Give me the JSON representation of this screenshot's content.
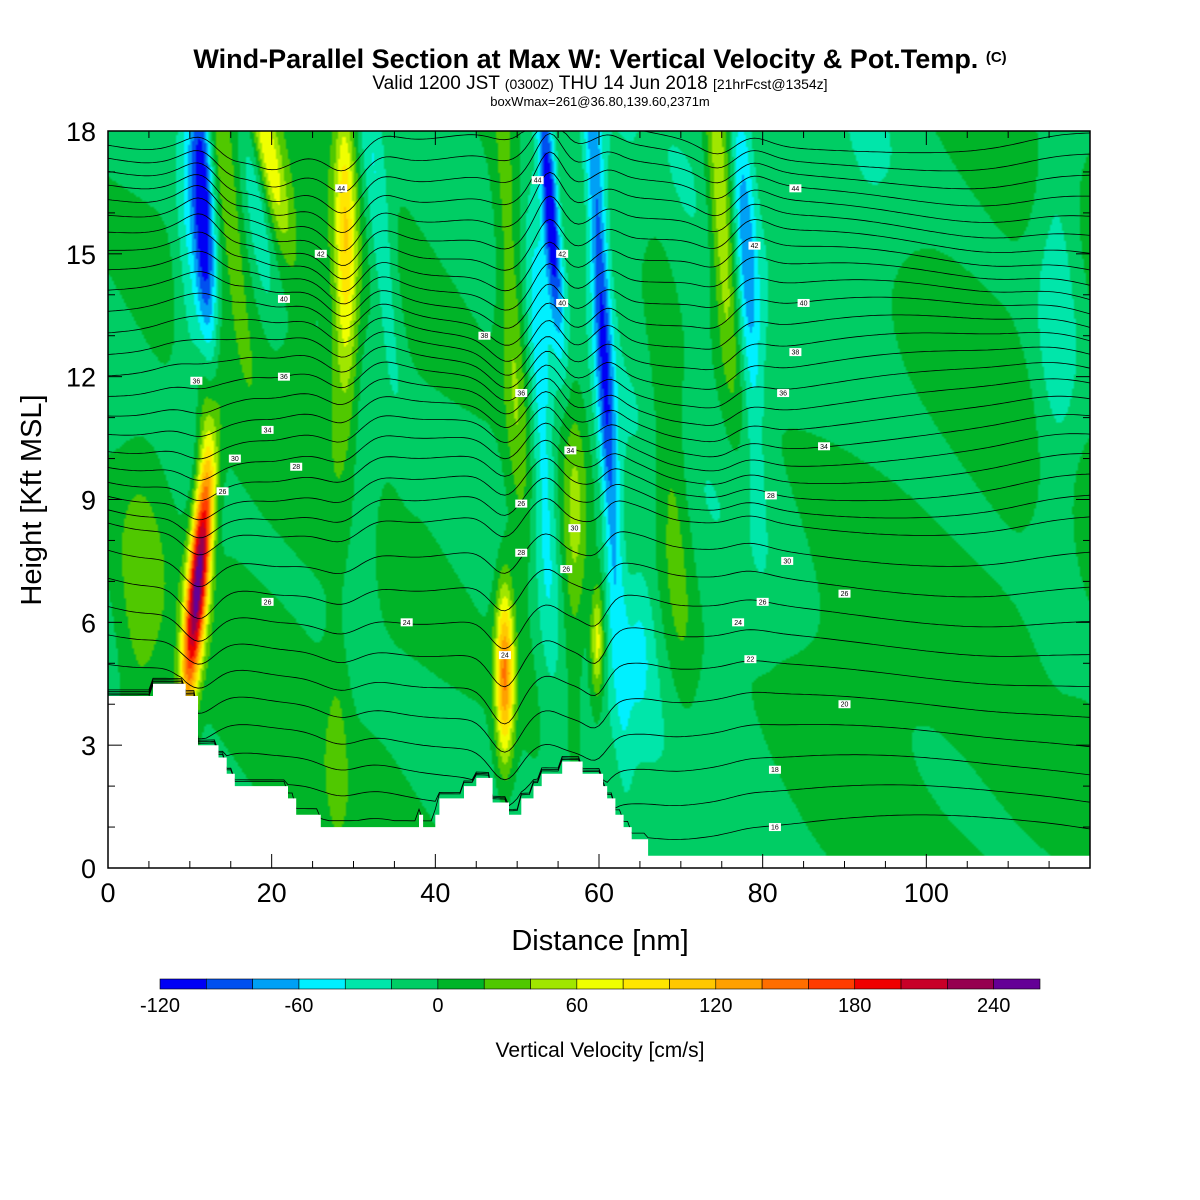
{
  "header": {
    "title": "Wind-Parallel Section at Max W: Vertical Velocity & Pot.Temp.",
    "title_mark": "(C)",
    "subtitle_a": "Valid 1200 JST",
    "subtitle_b": "(0300Z)",
    "subtitle_c": "THU 14 Jun 2018",
    "subtitle_d": "[21hrFcst@1354z]",
    "subtitle2": "boxWmax=261@36.80,139.60,2371m"
  },
  "chart_data": {
    "type": "heatmap",
    "xlabel": "Distance [nm]",
    "ylabel": "Height [Kft MSL]",
    "xlim": [
      0,
      120
    ],
    "ylim": [
      0,
      18
    ],
    "x_ticks": [
      0,
      20,
      40,
      60,
      80,
      100
    ],
    "y_ticks": [
      0,
      3,
      6,
      9,
      12,
      15,
      18
    ],
    "terrain_height_kft": {
      "x": [
        0,
        5.5,
        5.5,
        9.5,
        9.5,
        11,
        11,
        13.5,
        13.5,
        14.5,
        14.5,
        15.5,
        15.5,
        22,
        22,
        23,
        23,
        26,
        26,
        26.5,
        26.5,
        32,
        32,
        38,
        38,
        38.5,
        38.5,
        40,
        40,
        40.5,
        40.5,
        43,
        43,
        43.5,
        43.5,
        45,
        45,
        47,
        47,
        49,
        49,
        50.5,
        50.5,
        52,
        52,
        53,
        53,
        55.5,
        55.5,
        57,
        57,
        58,
        58,
        60.5,
        60.5,
        61,
        61,
        62,
        62,
        63,
        63,
        64,
        64,
        65,
        65,
        66,
        66,
        71,
        71,
        120
      ],
      "h": [
        4.2,
        4.2,
        4.5,
        4.5,
        4.2,
        4.2,
        3.0,
        3.0,
        2.7,
        2.7,
        2.3,
        2.3,
        2.0,
        2.0,
        1.7,
        1.7,
        1.3,
        1.3,
        1.0,
        1.0,
        1.0,
        1.0,
        1.0,
        1.0,
        1.3,
        1.3,
        1.0,
        1.0,
        1.3,
        1.3,
        1.7,
        1.7,
        1.7,
        1.7,
        2.0,
        2.0,
        2.2,
        2.2,
        1.6,
        1.6,
        1.3,
        1.3,
        1.7,
        1.7,
        2.0,
        2.0,
        2.3,
        2.3,
        2.6,
        2.6,
        2.6,
        2.6,
        2.3,
        2.3,
        2.0,
        2.0,
        1.7,
        1.7,
        1.3,
        1.3,
        1.0,
        1.0,
        0.7,
        0.7,
        0.7,
        0.7,
        0.3,
        0.3,
        0.3,
        0.3
      ]
    },
    "vertical_velocity_features": [
      {
        "x": 11,
        "y": 7.0,
        "sx": 0.9,
        "sy": 2.2,
        "w": 250,
        "tilt": 0.45
      },
      {
        "x": 12,
        "y": 11.5,
        "sx": 0.8,
        "sy": 1.4,
        "w": 40,
        "tilt": 0.0
      },
      {
        "x": 11.8,
        "y": 15.5,
        "sx": 0.9,
        "sy": 3.0,
        "w": -110,
        "tilt": -0.18
      },
      {
        "x": 10,
        "y": 16,
        "sx": 1.2,
        "sy": 3.5,
        "w": -40,
        "tilt": 0.0
      },
      {
        "x": 14.5,
        "y": 16.5,
        "sx": 1.0,
        "sy": 2.5,
        "w": 40,
        "tilt": -0.6
      },
      {
        "x": 19.5,
        "y": 17.5,
        "sx": 1.1,
        "sy": 1.8,
        "w": 70,
        "tilt": -1.0
      },
      {
        "x": 18,
        "y": 16.5,
        "sx": 1.0,
        "sy": 2.0,
        "w": -40,
        "tilt": -0.6
      },
      {
        "x": 29,
        "y": 16,
        "sx": 0.9,
        "sy": 2.2,
        "w": 80,
        "tilt": -0.05
      },
      {
        "x": 29,
        "y": 12.5,
        "sx": 1.3,
        "sy": 2.0,
        "w": 40,
        "tilt": 0.0
      },
      {
        "x": 33,
        "y": 16,
        "sx": 1.1,
        "sy": 3.0,
        "w": -45,
        "tilt": -0.5
      },
      {
        "x": 31,
        "y": 9.0,
        "sx": 1.5,
        "sy": 2.5,
        "w": -25,
        "tilt": 0.0
      },
      {
        "x": 48.5,
        "y": 4.8,
        "sx": 0.8,
        "sy": 1.5,
        "w": 145,
        "tilt": 0.0
      },
      {
        "x": 49.5,
        "y": 13.0,
        "sx": 1.1,
        "sy": 4.5,
        "w": 45,
        "tilt": -0.25
      },
      {
        "x": 54,
        "y": 16.2,
        "sx": 0.7,
        "sy": 2.2,
        "w": -115,
        "tilt": -0.35
      },
      {
        "x": 53,
        "y": 11,
        "sx": 1.0,
        "sy": 4.0,
        "w": -45,
        "tilt": -0.2
      },
      {
        "x": 57,
        "y": 8.2,
        "sx": 1.2,
        "sy": 2.5,
        "w": 55,
        "tilt": 0.0
      },
      {
        "x": 59.8,
        "y": 5.5,
        "sx": 0.6,
        "sy": 1.0,
        "w": 85,
        "tilt": 0.0
      },
      {
        "x": 60.5,
        "y": 13,
        "sx": 0.8,
        "sy": 5.5,
        "w": -90,
        "tilt": -0.25
      },
      {
        "x": 75,
        "y": 16,
        "sx": 1.1,
        "sy": 3.0,
        "w": 75,
        "tilt": -0.3
      },
      {
        "x": 69,
        "y": 9,
        "sx": 1.5,
        "sy": 4.0,
        "w": 40,
        "tilt": -0.3
      },
      {
        "x": 78,
        "y": 15,
        "sx": 1.0,
        "sy": 3.5,
        "w": -60,
        "tilt": -0.25
      },
      {
        "x": 65,
        "y": 5.5,
        "sx": 1.3,
        "sy": 1.4,
        "w": -30,
        "tilt": 0.0
      },
      {
        "x": 116,
        "y": 14,
        "sx": 2.0,
        "sy": 5.0,
        "w": -35,
        "tilt": 0.0
      },
      {
        "x": 93,
        "y": 16.5,
        "sx": 3.5,
        "sy": 2.5,
        "w": -18,
        "tilt": 0.0
      },
      {
        "x": 4,
        "y": 6.5,
        "sx": 2.0,
        "sy": 2.3,
        "w": 35,
        "tilt": 0.0
      },
      {
        "x": 28,
        "y": 3.0,
        "sx": 1.0,
        "sy": 2.0,
        "w": 20,
        "tilt": 0.0
      },
      {
        "x": 90,
        "y": 4.5,
        "sx": 6.0,
        "sy": 3.0,
        "w": 18,
        "tilt": 0.0
      }
    ],
    "potential_temperature_labels": [
      {
        "x": 28.5,
        "y": 16.6,
        "text": "44"
      },
      {
        "x": 52.5,
        "y": 16.8,
        "text": "44"
      },
      {
        "x": 84,
        "y": 16.6,
        "text": "44"
      },
      {
        "x": 26,
        "y": 15.0,
        "text": "42"
      },
      {
        "x": 55.5,
        "y": 15.0,
        "text": "42"
      },
      {
        "x": 79,
        "y": 15.2,
        "text": "42"
      },
      {
        "x": 21.5,
        "y": 13.9,
        "text": "40"
      },
      {
        "x": 55.5,
        "y": 13.8,
        "text": "40"
      },
      {
        "x": 85,
        "y": 13.8,
        "text": "40"
      },
      {
        "x": 46,
        "y": 13.0,
        "text": "38"
      },
      {
        "x": 84,
        "y": 12.6,
        "text": "38"
      },
      {
        "x": 10.8,
        "y": 11.9,
        "text": "36"
      },
      {
        "x": 21.5,
        "y": 12.0,
        "text": "36"
      },
      {
        "x": 50.5,
        "y": 11.6,
        "text": "36"
      },
      {
        "x": 82.5,
        "y": 11.6,
        "text": "36"
      },
      {
        "x": 19.5,
        "y": 10.7,
        "text": "34"
      },
      {
        "x": 56.5,
        "y": 10.2,
        "text": "34"
      },
      {
        "x": 87.5,
        "y": 10.3,
        "text": "34"
      },
      {
        "x": 15.5,
        "y": 10.0,
        "text": "30"
      },
      {
        "x": 57,
        "y": 8.3,
        "text": "30"
      },
      {
        "x": 83,
        "y": 7.5,
        "text": "30"
      },
      {
        "x": 23,
        "y": 9.8,
        "text": "28"
      },
      {
        "x": 50.5,
        "y": 7.7,
        "text": "28"
      },
      {
        "x": 81,
        "y": 9.1,
        "text": "28"
      },
      {
        "x": 14,
        "y": 9.2,
        "text": "26"
      },
      {
        "x": 50.5,
        "y": 8.9,
        "text": "26"
      },
      {
        "x": 56,
        "y": 7.3,
        "text": "26"
      },
      {
        "x": 19.5,
        "y": 6.5,
        "text": "26"
      },
      {
        "x": 80,
        "y": 6.5,
        "text": "26"
      },
      {
        "x": 90,
        "y": 6.7,
        "text": "26"
      },
      {
        "x": 36.5,
        "y": 6.0,
        "text": "24"
      },
      {
        "x": 48.5,
        "y": 5.2,
        "text": "24"
      },
      {
        "x": 77,
        "y": 6.0,
        "text": "24"
      },
      {
        "x": 78.5,
        "y": 5.1,
        "text": "22"
      },
      {
        "x": 90,
        "y": 4.0,
        "text": "20"
      },
      {
        "x": 81.5,
        "y": 2.4,
        "text": "18"
      },
      {
        "x": 81.5,
        "y": 1.0,
        "text": "16"
      }
    ]
  },
  "colorbar": {
    "title": "Vertical Velocity [cm/s]",
    "min": -120,
    "max": 260,
    "step": 20,
    "labels": [
      "-120",
      "-60",
      "0",
      "60",
      "120",
      "180",
      "240"
    ],
    "colors": [
      "#0000f5",
      "#0050f0",
      "#00a0f5",
      "#00f0ff",
      "#00e6aa",
      "#00cd64",
      "#00b428",
      "#50c800",
      "#a0e600",
      "#f0ff00",
      "#ffe600",
      "#ffc800",
      "#ffa000",
      "#ff6e00",
      "#ff3c00",
      "#f00000",
      "#c80028",
      "#960050",
      "#640096"
    ]
  }
}
